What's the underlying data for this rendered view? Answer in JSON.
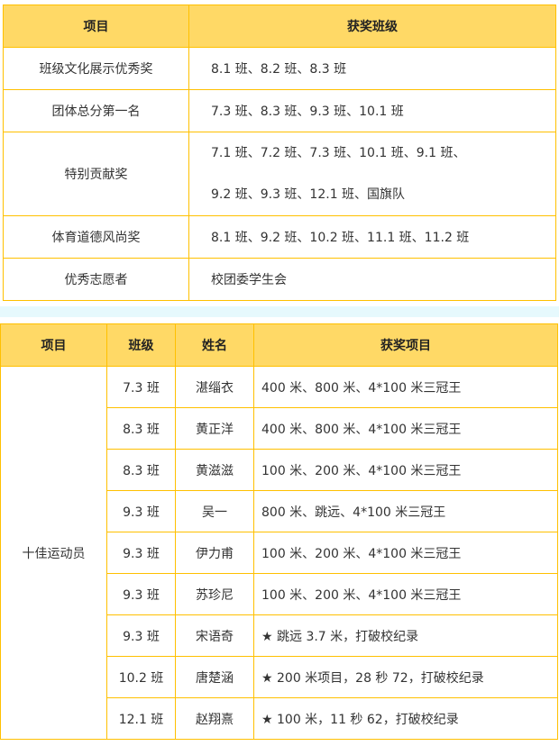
{
  "table1": {
    "headers": [
      "项目",
      "获奖班级"
    ],
    "rows": [
      {
        "item": "班级文化展示优秀奖",
        "classes": [
          "8.1 班、8.2 班、8.3 班"
        ]
      },
      {
        "item": "团体总分第一名",
        "classes": [
          "7.3 班、8.3 班、9.3 班、10.1 班"
        ]
      },
      {
        "item": "特别贡献奖",
        "classes": [
          "7.1 班、7.2 班、7.3 班、10.1 班、9.1 班、",
          "9.2 班、9.3 班、12.1 班、国旗队"
        ]
      },
      {
        "item": "体育道德风尚奖",
        "classes": [
          "8.1 班、9.2 班、10.2 班、11.1 班、11.2 班"
        ]
      },
      {
        "item": "优秀志愿者",
        "classes": [
          "校团委学生会"
        ]
      }
    ]
  },
  "table2": {
    "headers": [
      "项目",
      "班级",
      "姓名",
      "获奖项目"
    ],
    "category": "十佳运动员",
    "rows": [
      {
        "class": "7.3 班",
        "name": "湛缁衣",
        "award": "400 米、800 米、4*100 米三冠王"
      },
      {
        "class": "8.3 班",
        "name": "黄正洋",
        "award": "400 米、800 米、4*100 米三冠王"
      },
      {
        "class": "8.3 班",
        "name": "黄滋滋",
        "award": "100 米、200 米、4*100 米三冠王"
      },
      {
        "class": "9.3 班",
        "name": "吴一",
        "award": "800 米、跳远、4*100 米三冠王"
      },
      {
        "class": "9.3 班",
        "name": "伊力甫",
        "award": "100 米、200 米、4*100 米三冠王"
      },
      {
        "class": "9.3 班",
        "name": "苏珍尼",
        "award": "100 米、200 米、4*100 米三冠王"
      },
      {
        "class": "9.3 班",
        "name": "宋语奇",
        "award": "★ 跳远 3.7 米，打破校纪录"
      },
      {
        "class": "10.2 班",
        "name": "唐楚涵",
        "award": "★ 200 米项目，28 秒 72，打破校纪录"
      },
      {
        "class": "12.1 班",
        "name": "赵翔熹",
        "award": "★ 100 米，11 秒 62，打破校纪录"
      }
    ]
  },
  "colors": {
    "header_bg": "#FFD966",
    "border": "#FFC000",
    "band": "#E6F9FD"
  }
}
